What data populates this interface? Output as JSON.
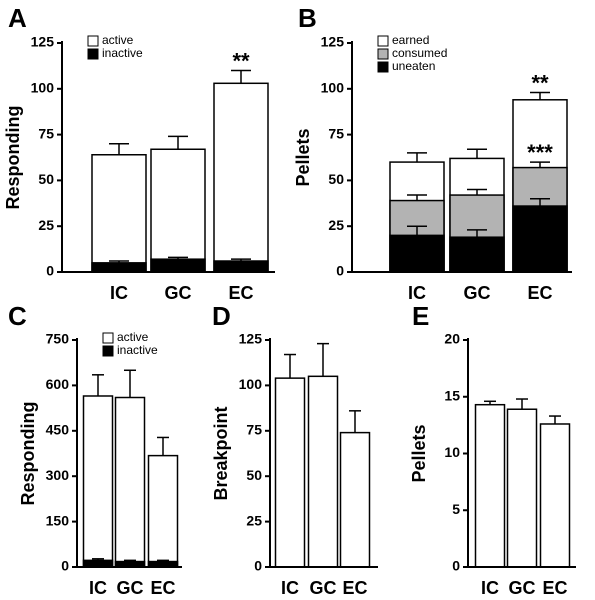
{
  "chart_data": [
    {
      "type": "bar",
      "panel_label": "A",
      "ylabel": "Responding",
      "categories": [
        "IC",
        "GC",
        "EC"
      ],
      "series": [
        {
          "name": "active",
          "color": "#ffffff",
          "values": [
            64,
            67,
            103
          ],
          "errors": [
            6,
            7,
            7
          ]
        },
        {
          "name": "inactive",
          "color": "#000000",
          "values": [
            5,
            7,
            6
          ],
          "errors": [
            1,
            1,
            1
          ]
        }
      ],
      "ylim": [
        0,
        125
      ],
      "yticks": [
        0,
        25,
        50,
        75,
        100,
        125
      ],
      "legend": "upper left",
      "annotations": [
        {
          "text": "**",
          "category": "EC",
          "series": "active"
        }
      ]
    },
    {
      "type": "bar",
      "panel_label": "B",
      "ylabel": "Pellets",
      "categories": [
        "IC",
        "GC",
        "EC"
      ],
      "series": [
        {
          "name": "earned",
          "color": "#ffffff",
          "values": [
            60,
            62,
            94
          ],
          "errors": [
            5,
            5,
            4
          ]
        },
        {
          "name": "consumed",
          "color": "#b3b3b3",
          "values": [
            39,
            42,
            57
          ],
          "errors": [
            3,
            3,
            3
          ]
        },
        {
          "name": "uneaten",
          "color": "#000000",
          "values": [
            20,
            19,
            36
          ],
          "errors": [
            5,
            4,
            4
          ]
        }
      ],
      "ylim": [
        0,
        125
      ],
      "yticks": [
        0,
        25,
        50,
        75,
        100,
        125
      ],
      "legend": "upper left",
      "annotations": [
        {
          "text": "**",
          "category": "EC",
          "series": "earned"
        },
        {
          "text": "***",
          "category": "EC",
          "series": "consumed"
        }
      ]
    },
    {
      "type": "bar",
      "panel_label": "C",
      "ylabel": "Responding",
      "categories": [
        "IC",
        "GC",
        "EC"
      ],
      "series": [
        {
          "name": "active",
          "color": "#ffffff",
          "values": [
            565,
            560,
            368
          ],
          "errors": [
            70,
            90,
            60
          ]
        },
        {
          "name": "inactive",
          "color": "#000000",
          "values": [
            22,
            18,
            18
          ],
          "errors": [
            5,
            4,
            4
          ]
        }
      ],
      "ylim": [
        0,
        750
      ],
      "yticks": [
        0,
        150,
        300,
        450,
        600,
        750
      ],
      "legend": "upper left"
    },
    {
      "type": "bar",
      "panel_label": "D",
      "ylabel": "Breakpoint",
      "categories": [
        "IC",
        "GC",
        "EC"
      ],
      "values": [
        104,
        105,
        74
      ],
      "errors": [
        13,
        18,
        12
      ],
      "color": "#ffffff",
      "ylim": [
        0,
        125
      ],
      "yticks": [
        0,
        25,
        50,
        75,
        100,
        125
      ]
    },
    {
      "type": "bar",
      "panel_label": "E",
      "ylabel": "Pellets",
      "categories": [
        "IC",
        "GC",
        "EC"
      ],
      "values": [
        14.3,
        13.9,
        12.6
      ],
      "errors": [
        0.3,
        0.9,
        0.7
      ],
      "color": "#ffffff",
      "ylim": [
        0,
        20
      ],
      "yticks": [
        0,
        5,
        10,
        15,
        20
      ]
    }
  ]
}
